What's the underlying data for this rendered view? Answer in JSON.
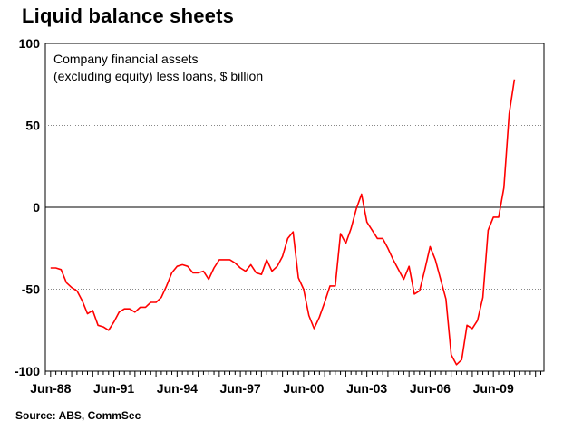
{
  "title": "Liquid balance sheets",
  "source": "Source: ABS, CommSec",
  "chart_data": {
    "type": "line",
    "title": "Liquid balance sheets",
    "annotation_lines": [
      "Company financial assets",
      "(excluding equity) less loans, $ billion"
    ],
    "xlabel": "",
    "ylabel": "",
    "ylim": [
      -100,
      100
    ],
    "yticks": [
      100,
      50,
      0,
      -50,
      -100
    ],
    "xtick_labels": [
      "Jun-88",
      "Jun-91",
      "Jun-94",
      "Jun-97",
      "Jun-00",
      "Jun-03",
      "Jun-06",
      "Jun-09"
    ],
    "xlim": [
      1988.25,
      2011.9
    ],
    "grid": "horizontal dotted",
    "line_color": "#ff0000",
    "series": [
      {
        "x": [
          1988.5,
          1988.75,
          1989.0,
          1989.25,
          1989.5,
          1989.75,
          1990.0,
          1990.25,
          1990.5,
          1990.75,
          1991.0,
          1991.25,
          1991.5,
          1991.75,
          1992.0,
          1992.25,
          1992.5,
          1992.75,
          1993.0,
          1993.25,
          1993.5,
          1993.75,
          1994.0,
          1994.25,
          1994.5,
          1994.75,
          1995.0,
          1995.25,
          1995.5,
          1995.75,
          1996.0,
          1996.25,
          1996.5,
          1996.75,
          1997.0,
          1997.25,
          1997.5,
          1997.75,
          1998.0,
          1998.25,
          1998.5,
          1998.75,
          1999.0,
          1999.25,
          1999.5,
          1999.75,
          2000.0,
          2000.25,
          2000.5,
          2000.75,
          2001.0,
          2001.25,
          2001.5,
          2001.75,
          2002.0,
          2002.25,
          2002.5,
          2002.75,
          2003.0,
          2003.25,
          2003.5,
          2003.75,
          2004.0,
          2004.25,
          2004.5,
          2004.75,
          2005.0,
          2005.25,
          2005.5,
          2005.75,
          2006.0,
          2006.25,
          2006.5,
          2006.75,
          2007.0,
          2007.25,
          2007.5,
          2007.75,
          2008.0,
          2008.25,
          2008.5,
          2008.75,
          2009.0,
          2009.25,
          2009.5,
          2009.75,
          2010.0,
          2010.25,
          2010.5
        ],
        "values": [
          -37,
          -37,
          -38,
          -46,
          -49,
          -51,
          -57,
          -65,
          -63,
          -72,
          -73,
          -75,
          -70,
          -64,
          -62,
          -62,
          -64,
          -61,
          -61,
          -58,
          -58,
          -55,
          -48,
          -40,
          -36,
          -35,
          -36,
          -40,
          -40,
          -39,
          -44,
          -37,
          -32,
          -32,
          -32,
          -34,
          -37,
          -39,
          -35,
          -40,
          -41,
          -32,
          -39,
          -36,
          -30,
          -19,
          -15,
          -43,
          -50,
          -66,
          -74,
          -67,
          -58,
          -48,
          -48,
          -16,
          -22,
          -13,
          -1,
          8,
          -9,
          -14,
          -19,
          -19,
          -25,
          -32,
          -38,
          -44,
          -36,
          -53,
          -51,
          -38,
          -24,
          -32,
          -44,
          -56,
          -90,
          -96,
          -93,
          -72,
          -74,
          -69,
          -55,
          -14,
          -6,
          -6,
          12,
          57,
          78
        ]
      }
    ]
  }
}
